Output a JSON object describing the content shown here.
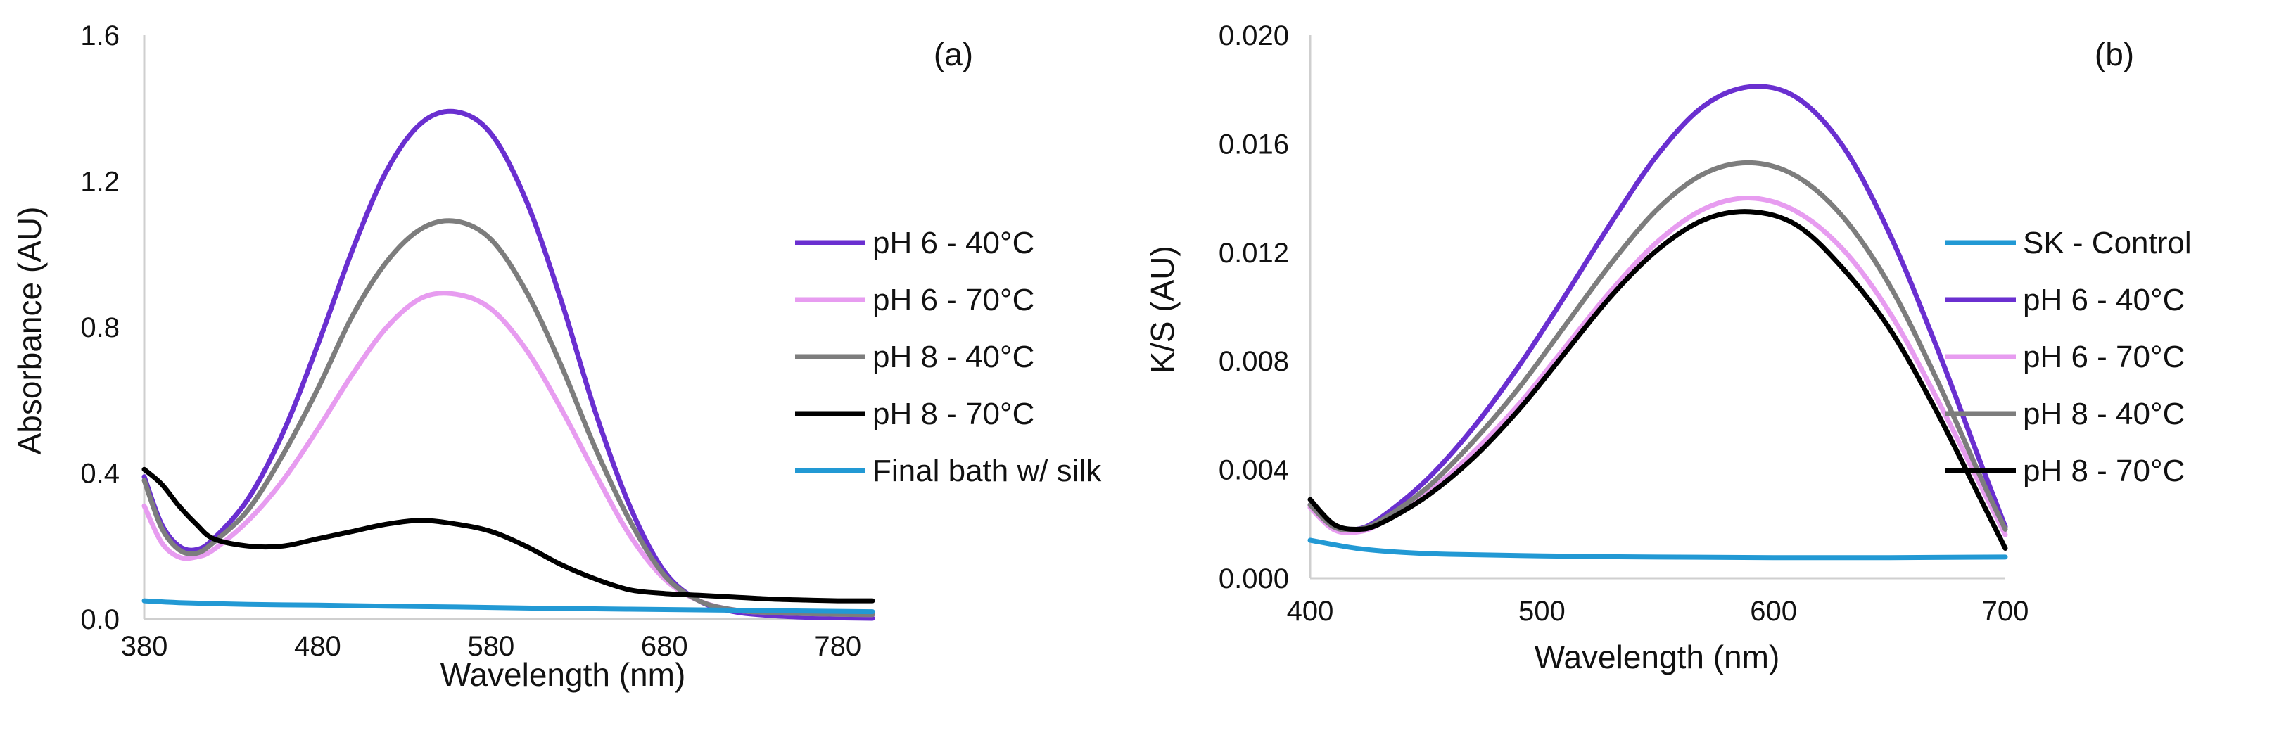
{
  "chart_data": [
    {
      "id": "a",
      "type": "line",
      "panel_label": "(a)",
      "title": "",
      "xlabel": "Wavelength (nm)",
      "ylabel": "Absorbance (AU)",
      "xlim": [
        380,
        800
      ],
      "ylim": [
        0,
        1.6
      ],
      "xticks": [
        380,
        480,
        580,
        680,
        780
      ],
      "yticks": [
        0,
        0.4,
        0.8,
        1.2,
        1.6
      ],
      "xtick_labels": [
        "380",
        "480",
        "580",
        "680",
        "780"
      ],
      "ytick_labels": [
        "0.0",
        "0.4",
        "0.8",
        "1.2",
        "1.6"
      ],
      "grid": false,
      "legend_position": "right",
      "series": [
        {
          "name": "pH 6 - 40°C",
          "color": "#6a2fd0",
          "x": [
            380,
            390,
            400,
            410,
            420,
            440,
            460,
            480,
            500,
            520,
            540,
            560,
            580,
            600,
            620,
            640,
            660,
            680,
            700,
            720,
            740,
            760,
            780,
            800
          ],
          "y": [
            0.39,
            0.26,
            0.2,
            0.19,
            0.22,
            0.33,
            0.51,
            0.75,
            1.01,
            1.23,
            1.36,
            1.39,
            1.33,
            1.15,
            0.88,
            0.57,
            0.31,
            0.13,
            0.05,
            0.02,
            0.01,
            0.005,
            0.003,
            0.002
          ]
        },
        {
          "name": "pH 6 - 70°C",
          "color": "#e79cf0",
          "x": [
            380,
            390,
            400,
            410,
            420,
            440,
            460,
            480,
            500,
            520,
            540,
            560,
            580,
            600,
            620,
            640,
            660,
            680,
            700,
            720,
            740,
            760,
            780,
            800
          ],
          "y": [
            0.31,
            0.21,
            0.17,
            0.17,
            0.19,
            0.27,
            0.38,
            0.52,
            0.67,
            0.8,
            0.88,
            0.89,
            0.85,
            0.74,
            0.58,
            0.4,
            0.23,
            0.11,
            0.05,
            0.025,
            0.018,
            0.015,
            0.013,
            0.012
          ]
        },
        {
          "name": "pH 8 - 40°C",
          "color": "#7d7d7d",
          "x": [
            380,
            390,
            400,
            410,
            420,
            440,
            460,
            480,
            500,
            520,
            540,
            560,
            580,
            600,
            620,
            640,
            660,
            680,
            700,
            720,
            740,
            760,
            780,
            800
          ],
          "y": [
            0.38,
            0.25,
            0.19,
            0.18,
            0.21,
            0.3,
            0.45,
            0.63,
            0.83,
            0.98,
            1.07,
            1.09,
            1.04,
            0.9,
            0.7,
            0.47,
            0.27,
            0.12,
            0.05,
            0.025,
            0.018,
            0.015,
            0.013,
            0.012
          ]
        },
        {
          "name": "pH 8 - 70°C",
          "color": "#000000",
          "x": [
            380,
            390,
            400,
            410,
            420,
            440,
            460,
            480,
            500,
            520,
            540,
            560,
            580,
            600,
            620,
            640,
            660,
            680,
            700,
            720,
            740,
            760,
            780,
            800
          ],
          "y": [
            0.41,
            0.37,
            0.31,
            0.26,
            0.22,
            0.2,
            0.2,
            0.22,
            0.24,
            0.26,
            0.27,
            0.26,
            0.24,
            0.2,
            0.15,
            0.11,
            0.08,
            0.07,
            0.065,
            0.06,
            0.055,
            0.052,
            0.05,
            0.05
          ]
        },
        {
          "name": "Final bath w/ silk",
          "color": "#2299d4",
          "x": [
            380,
            400,
            440,
            480,
            520,
            560,
            600,
            640,
            680,
            720,
            760,
            800
          ],
          "y": [
            0.05,
            0.045,
            0.04,
            0.038,
            0.035,
            0.033,
            0.03,
            0.028,
            0.026,
            0.024,
            0.022,
            0.02
          ]
        }
      ]
    },
    {
      "id": "b",
      "type": "line",
      "panel_label": "(b)",
      "title": "",
      "xlabel": "Wavelength (nm)",
      "ylabel": "K/S (AU)",
      "xlim": [
        400,
        700
      ],
      "ylim": [
        0,
        0.02
      ],
      "xticks": [
        400,
        500,
        600,
        700
      ],
      "yticks": [
        0,
        0.004,
        0.008,
        0.012,
        0.016,
        0.02
      ],
      "xtick_labels": [
        "400",
        "500",
        "600",
        "700"
      ],
      "ytick_labels": [
        "0.000",
        "0.004",
        "0.008",
        "0.012",
        "0.016",
        "0.020"
      ],
      "grid": false,
      "legend_position": "right",
      "series": [
        {
          "name": "SK - Control",
          "color": "#2299d4",
          "x": [
            400,
            420,
            440,
            460,
            500,
            550,
            600,
            650,
            700
          ],
          "y": [
            0.0014,
            0.0011,
            0.00095,
            0.00088,
            0.00082,
            0.00078,
            0.00076,
            0.00076,
            0.00078
          ]
        },
        {
          "name": "pH 6 - 40°C",
          "color": "#6a2fd0",
          "x": [
            400,
            410,
            420,
            430,
            450,
            470,
            490,
            510,
            530,
            550,
            570,
            590,
            610,
            630,
            650,
            670,
            690,
            700
          ],
          "y": [
            0.0027,
            0.0019,
            0.0018,
            0.0022,
            0.0036,
            0.0055,
            0.0078,
            0.0104,
            0.0131,
            0.0156,
            0.0174,
            0.0181,
            0.0177,
            0.0159,
            0.0127,
            0.0086,
            0.0041,
            0.0019
          ]
        },
        {
          "name": "pH 6 - 70°C",
          "color": "#e79cf0",
          "x": [
            400,
            410,
            420,
            430,
            450,
            470,
            490,
            510,
            530,
            550,
            570,
            590,
            610,
            630,
            650,
            670,
            690,
            700
          ],
          "y": [
            0.0026,
            0.0018,
            0.0017,
            0.002,
            0.0031,
            0.0046,
            0.0064,
            0.0085,
            0.0106,
            0.0124,
            0.0136,
            0.014,
            0.0135,
            0.0121,
            0.0098,
            0.0067,
            0.0033,
            0.0016
          ]
        },
        {
          "name": "pH 8 - 40°C",
          "color": "#7d7d7d",
          "x": [
            400,
            410,
            420,
            430,
            450,
            470,
            490,
            510,
            530,
            550,
            570,
            590,
            610,
            630,
            650,
            670,
            690,
            700
          ],
          "y": [
            0.0027,
            0.0019,
            0.0018,
            0.0021,
            0.0033,
            0.005,
            0.007,
            0.0093,
            0.0116,
            0.0136,
            0.0149,
            0.0153,
            0.0148,
            0.0133,
            0.0108,
            0.0074,
            0.0036,
            0.0018
          ]
        },
        {
          "name": "pH 8 - 70°C",
          "color": "#000000",
          "x": [
            400,
            410,
            420,
            430,
            450,
            470,
            490,
            510,
            530,
            550,
            570,
            590,
            610,
            630,
            650,
            670,
            690,
            700
          ],
          "y": [
            0.0029,
            0.002,
            0.0018,
            0.002,
            0.003,
            0.0044,
            0.0062,
            0.0083,
            0.0104,
            0.0121,
            0.0132,
            0.0135,
            0.013,
            0.0114,
            0.0092,
            0.0062,
            0.0028,
            0.0011
          ]
        }
      ]
    }
  ]
}
